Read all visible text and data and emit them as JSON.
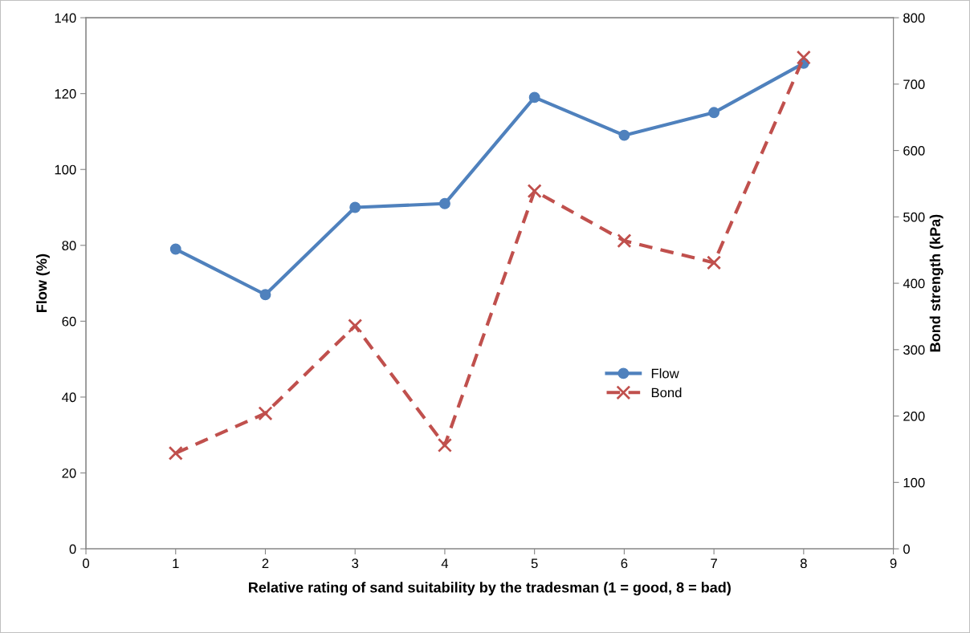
{
  "chart_data": {
    "type": "line",
    "xlabel": "Relative rating of sand suitability by the tradesman (1 = good, 8 = bad)",
    "ylabel": "Flow (%)",
    "y2label": "Bond strength (kPa)",
    "x": [
      1,
      2,
      3,
      4,
      5,
      6,
      7,
      8
    ],
    "series": [
      {
        "name": "Flow",
        "color": "#4f81bd",
        "values": [
          79,
          67,
          90,
          91,
          119,
          109,
          115,
          128
        ],
        "marker": "circle",
        "line_style": "solid"
      },
      {
        "name": "Bond",
        "color": "#c0504d",
        "values": [
          144,
          204,
          336,
          156,
          539,
          464,
          431,
          740
        ],
        "marker": "cross",
        "line_style": "dashed",
        "axis": "y2"
      }
    ],
    "xlim": [
      0,
      9
    ],
    "xticks": [
      0,
      1,
      2,
      3,
      4,
      5,
      6,
      7,
      8,
      9
    ],
    "ylim": [
      0,
      140
    ],
    "yticks": [
      0,
      20,
      40,
      60,
      80,
      100,
      120,
      140
    ],
    "y2lim": [
      0,
      800
    ],
    "y2ticks": [
      0,
      100,
      200,
      300,
      400,
      500,
      600,
      700,
      800
    ],
    "grid": false,
    "legend": "center right"
  }
}
